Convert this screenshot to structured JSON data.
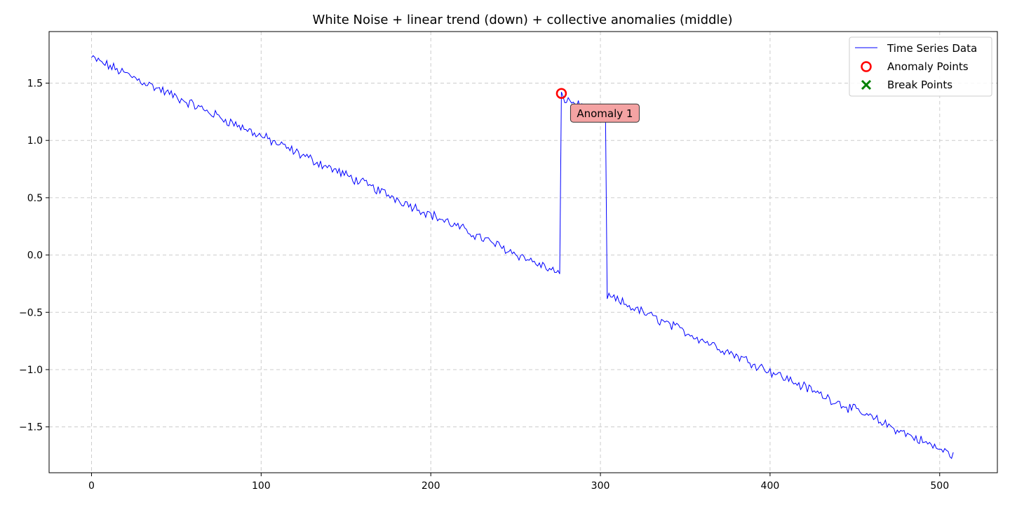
{
  "chart_data": {
    "type": "line",
    "title": "White Noise + linear trend (down) + collective anomalies (middle)",
    "xlabel": "",
    "ylabel": "",
    "xlim": [
      -25,
      534
    ],
    "ylim": [
      -1.9,
      1.95
    ],
    "xticks": [
      0,
      100,
      200,
      300,
      400,
      500
    ],
    "xtick_labels": [
      "0",
      "100",
      "200",
      "300",
      "400",
      "500"
    ],
    "yticks": [
      -1.5,
      -1.0,
      -0.5,
      0.0,
      0.5,
      1.0,
      1.5
    ],
    "ytick_labels": [
      "−1.5",
      "−1.0",
      "−0.5",
      "0.0",
      "0.5",
      "1.0",
      "1.5"
    ],
    "grid": true,
    "legend_position": "top-right",
    "series": [
      {
        "name": "Time Series Data",
        "color": "#0000ff",
        "x_range": [
          0,
          508
        ],
        "trend_start": 1.72,
        "trend_end": -1.75,
        "noise_amplitude": 0.035,
        "anomaly_interval": [
          277,
          303
        ],
        "anomaly_offset": 1.55
      }
    ],
    "anomaly_points": {
      "name": "Anomaly Points",
      "color": "#ff0000",
      "points": [
        {
          "x": 277,
          "y": 1.41
        }
      ]
    },
    "break_points": {
      "name": "Break Points",
      "color": "#008000",
      "points": []
    },
    "annotations": [
      {
        "text": "Anomaly 1",
        "x": 277,
        "y": 1.41,
        "color": "#f4a3a3"
      }
    ]
  }
}
